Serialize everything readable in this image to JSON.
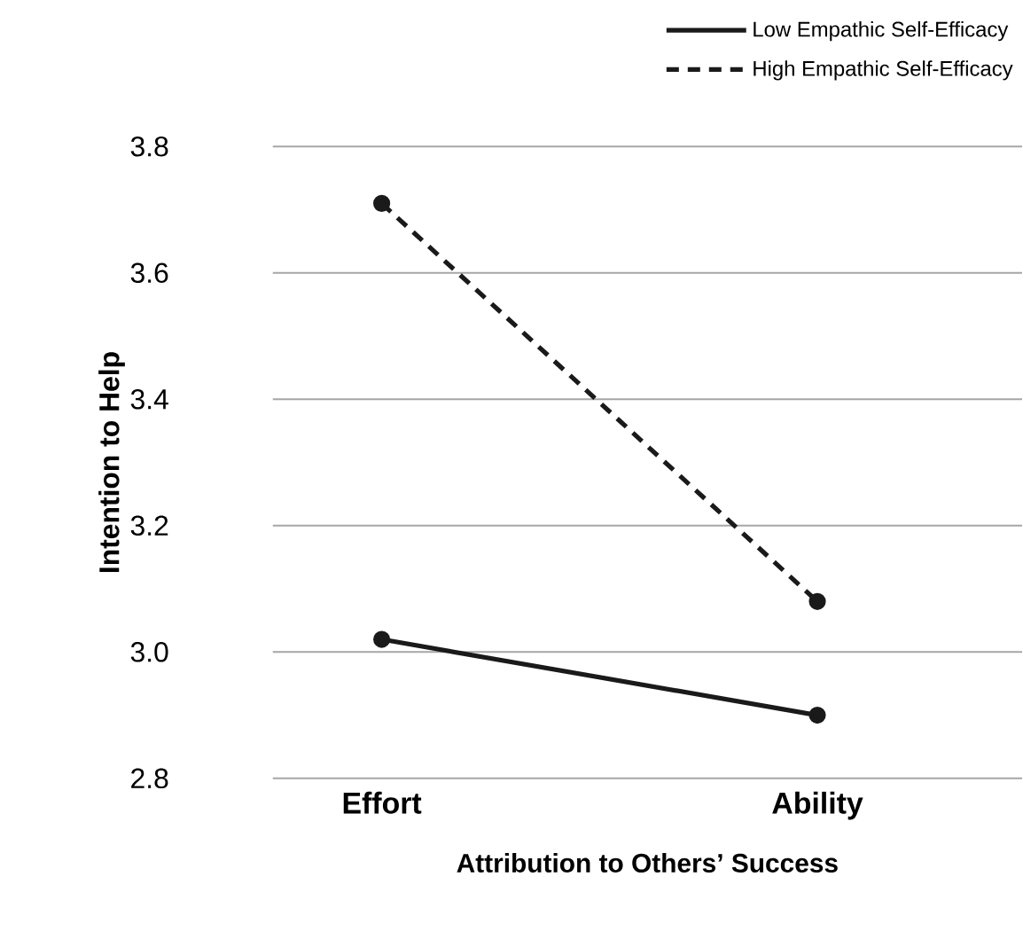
{
  "chart_data": {
    "type": "line",
    "xlabel": "Attribution to Others’ Success",
    "ylabel": "Intention to Help",
    "categories": [
      "Effort",
      "Ability"
    ],
    "series": [
      {
        "name": "Low Empathic Self-Efficacy",
        "color": "#1a1a1a",
        "values": [
          3.02,
          2.9
        ],
        "line_style": "solid"
      },
      {
        "name": "High Empathic Self-Efficacy",
        "color": "#1a1a1a",
        "values": [
          3.71,
          3.08
        ],
        "line_style": "dashed"
      }
    ],
    "ylim": [
      2.8,
      3.8
    ],
    "yticks": [
      2.8,
      {
        "value": 3.0,
        "label": "3.0"
      },
      3.2,
      3.4,
      3.6,
      3.8
    ],
    "grid": "y",
    "legend": "top right",
    "marker": "circle"
  }
}
